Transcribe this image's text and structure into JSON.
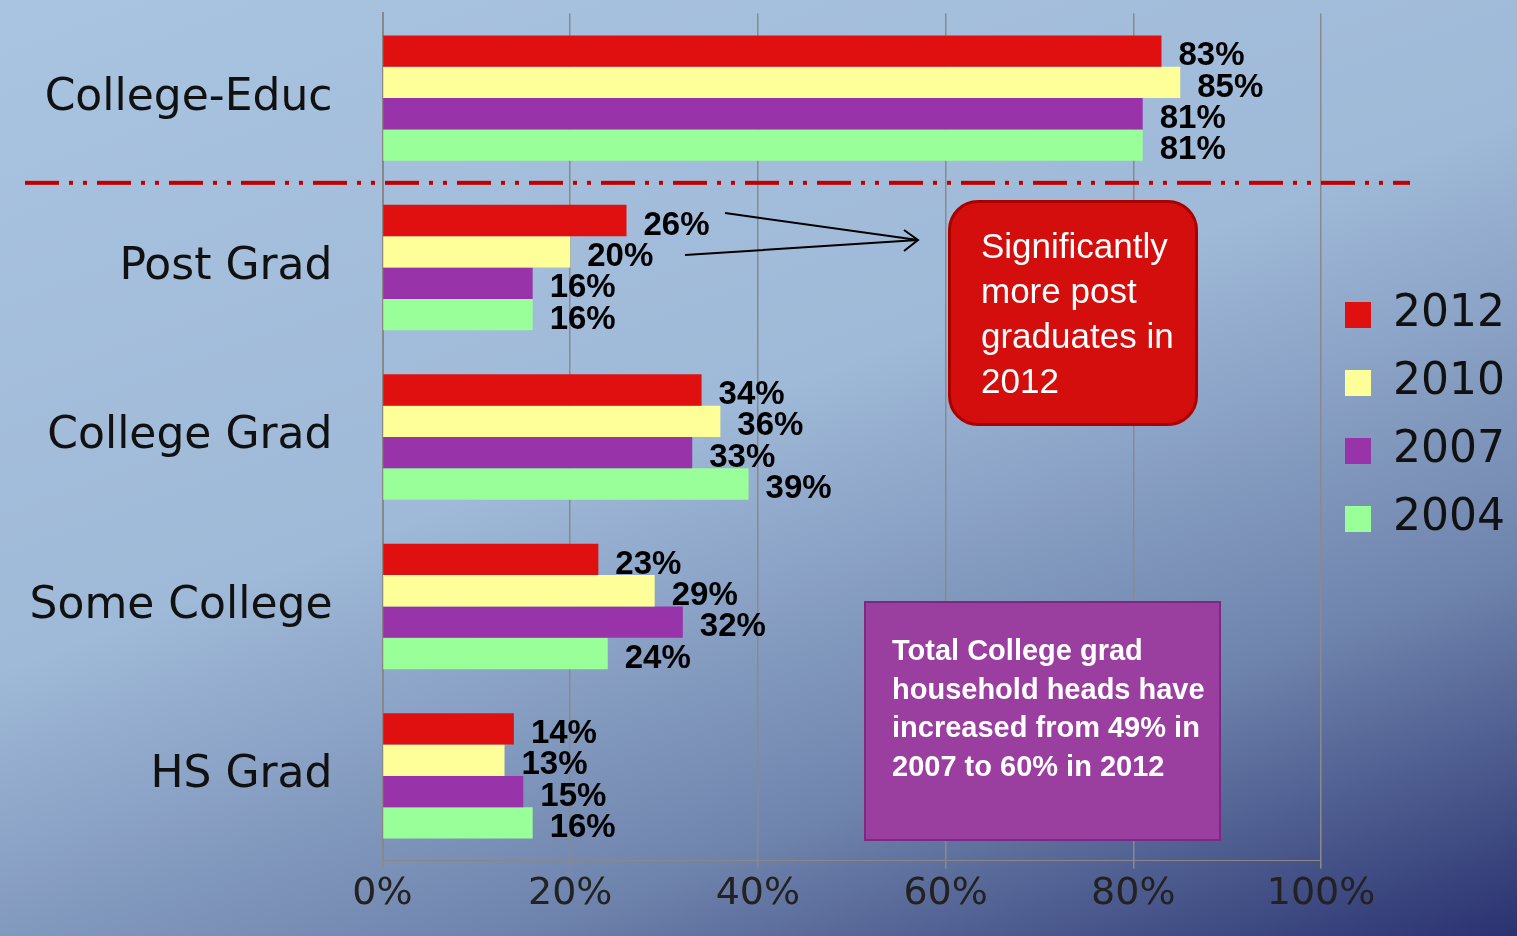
{
  "chart_data": {
    "type": "bar",
    "orientation": "horizontal",
    "categories": [
      "College-Educ",
      "Post Grad",
      "College Grad",
      "Some College",
      "HS Grad"
    ],
    "series": [
      {
        "name": "2012",
        "color": "#e01010",
        "values": [
          83,
          26,
          34,
          23,
          14
        ],
        "value_labels": [
          "83%",
          "26%",
          "34%",
          "23%",
          "14%"
        ]
      },
      {
        "name": "2010",
        "color": "#ffff99",
        "values": [
          85,
          20,
          36,
          29,
          13
        ],
        "value_labels": [
          "85%",
          "20%",
          "36%",
          "29%",
          "13%"
        ]
      },
      {
        "name": "2007",
        "color": "#9933aa",
        "values": [
          81,
          16,
          33,
          32,
          15
        ],
        "value_labels": [
          "81%",
          "16%",
          "33%",
          "32%",
          "15%"
        ]
      },
      {
        "name": "2004",
        "color": "#99ff99",
        "values": [
          81,
          16,
          39,
          24,
          16
        ],
        "value_labels": [
          "81%",
          "16%",
          "39%",
          "24%",
          "16%"
        ]
      }
    ],
    "xlim": [
      0,
      100
    ],
    "xticks": [
      {
        "value": 0,
        "label": "0%"
      },
      {
        "value": 20,
        "label": "20%"
      },
      {
        "value": 40,
        "label": "40%"
      },
      {
        "value": 60,
        "label": "60%"
      },
      {
        "value": 80,
        "label": "80%"
      },
      {
        "value": 100,
        "label": "100%"
      }
    ],
    "grid": "x",
    "legend": "right",
    "annotations": [
      "Significantly more post graduates in 2012",
      "Total College grad household heads have increased from 49% in 2007 to 60% in 2012"
    ]
  }
}
